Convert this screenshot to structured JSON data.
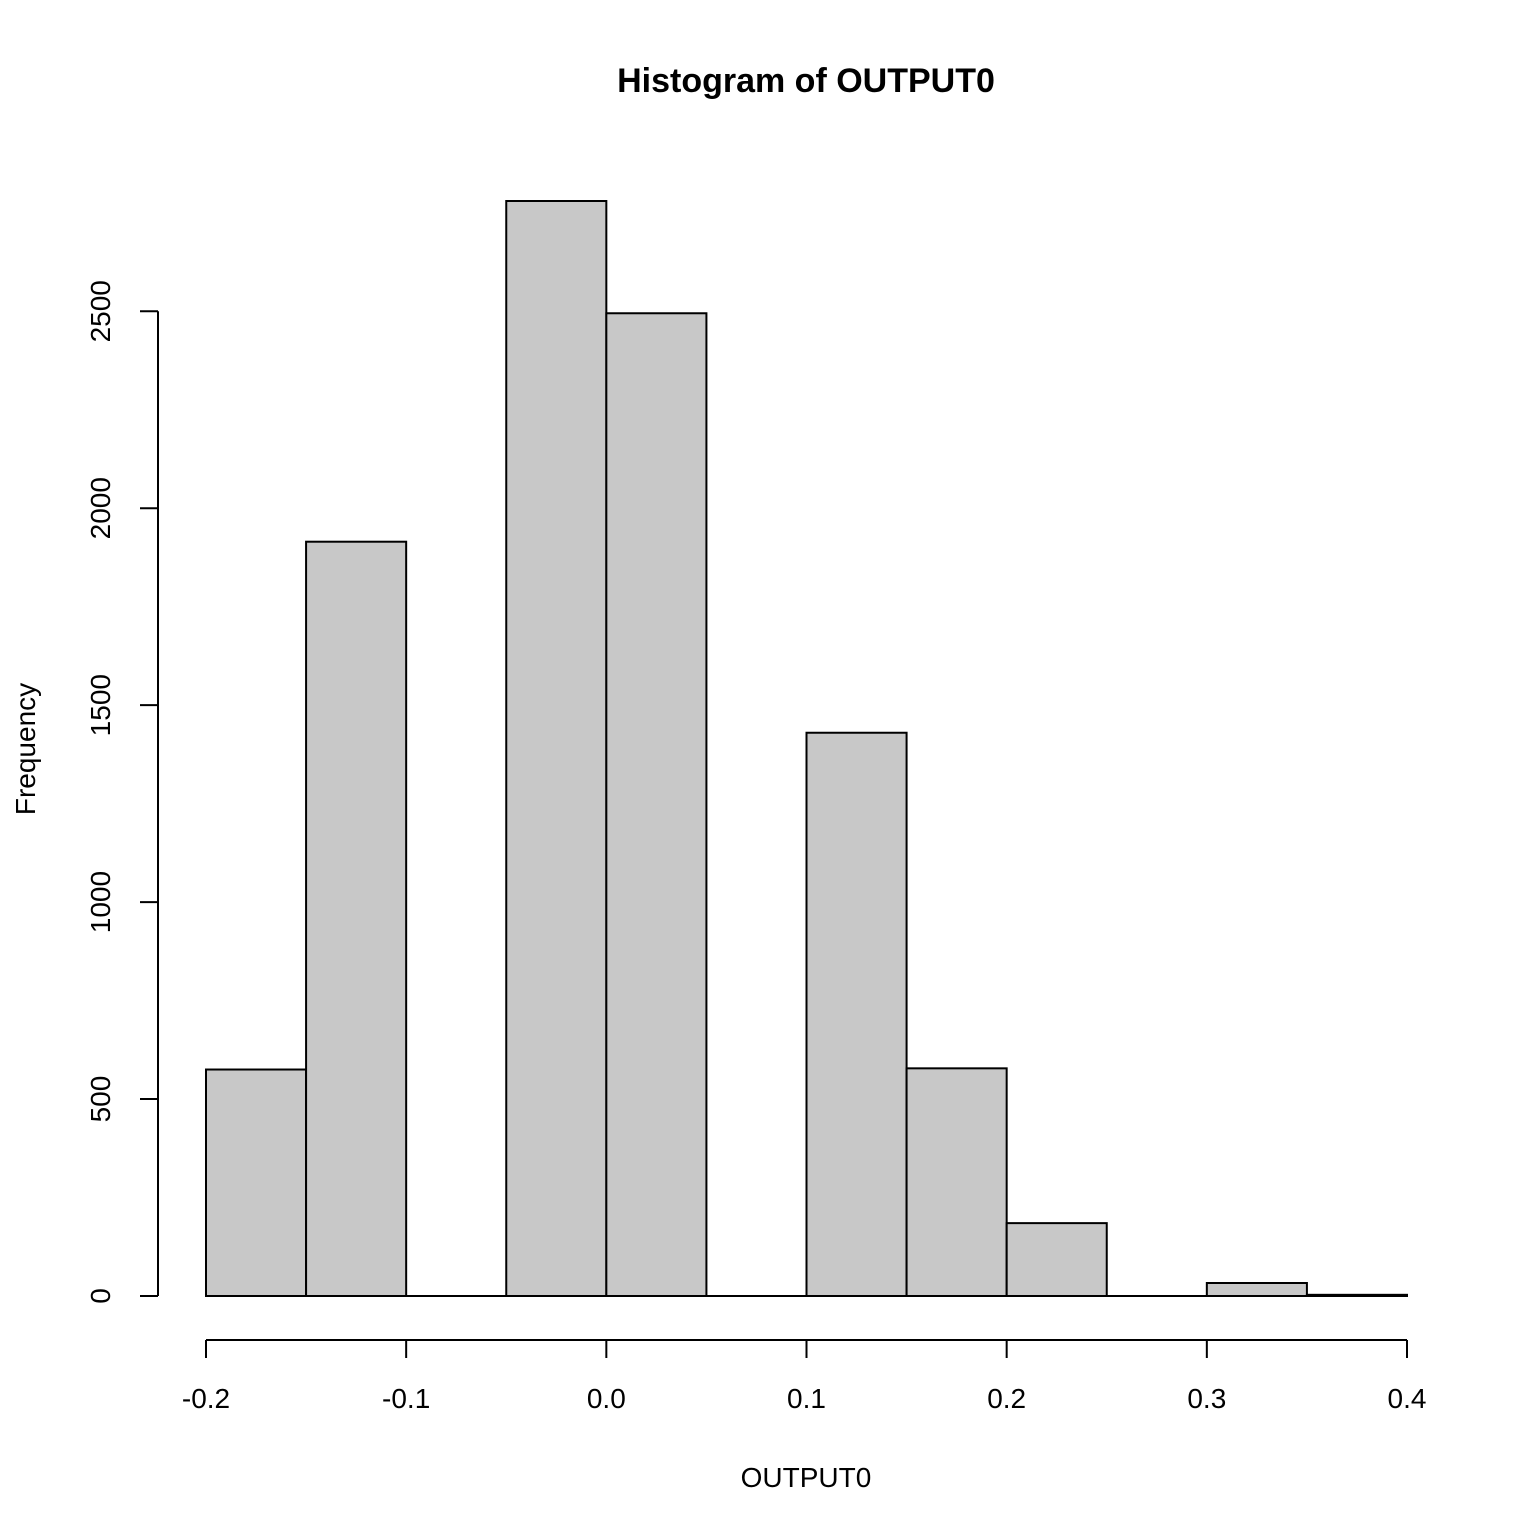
{
  "chart_data": {
    "type": "bar",
    "subtype": "histogram",
    "title": "Histogram of OUTPUT0",
    "xlabel": "OUTPUT0",
    "ylabel": "Frequency",
    "bins": [
      {
        "x0": -0.2,
        "x1": -0.15,
        "count": 575
      },
      {
        "x0": -0.15,
        "x1": -0.1,
        "count": 1915
      },
      {
        "x0": -0.1,
        "x1": -0.05,
        "count": 0
      },
      {
        "x0": -0.05,
        "x1": 0.0,
        "count": 2780
      },
      {
        "x0": 0.0,
        "x1": 0.05,
        "count": 2495
      },
      {
        "x0": 0.05,
        "x1": 0.1,
        "count": 0
      },
      {
        "x0": 0.1,
        "x1": 0.15,
        "count": 1430
      },
      {
        "x0": 0.15,
        "x1": 0.2,
        "count": 578
      },
      {
        "x0": 0.2,
        "x1": 0.25,
        "count": 185
      },
      {
        "x0": 0.25,
        "x1": 0.3,
        "count": 0
      },
      {
        "x0": 0.3,
        "x1": 0.35,
        "count": 33
      },
      {
        "x0": 0.35,
        "x1": 0.4,
        "count": 3
      }
    ],
    "xlim": [
      -0.2,
      0.4
    ],
    "ylim": [
      0,
      2780
    ],
    "x_ticks": [
      -0.2,
      -0.1,
      0.0,
      0.1,
      0.2,
      0.3,
      0.4
    ],
    "x_tick_labels": [
      "-0.2",
      "-0.1",
      "0.0",
      "0.1",
      "0.2",
      "0.3",
      "0.4"
    ],
    "y_ticks": [
      0,
      500,
      1000,
      1500,
      2000,
      2500
    ],
    "y_tick_labels": [
      "0",
      "500",
      "1000",
      "1500",
      "2000",
      "2500"
    ],
    "bar_fill": "#c8c8c8",
    "bar_stroke": "#000000",
    "grid": false,
    "legend": "none"
  }
}
